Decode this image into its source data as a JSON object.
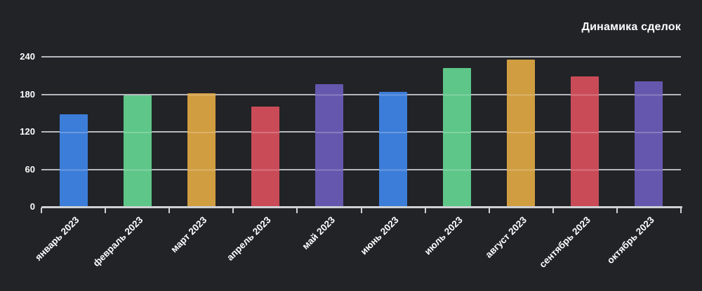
{
  "header": {
    "title": "Динамика сделок"
  },
  "chart_data": {
    "type": "bar",
    "title": "Динамика сделок",
    "categories": [
      "январь 2023",
      "февраль 2023",
      "март 2023",
      "апрель 2023",
      "май 2023",
      "июнь 2023",
      "июль 2023",
      "август 2023",
      "сентябрь 2023",
      "октябрь 2023"
    ],
    "values": [
      148,
      178,
      182,
      160,
      196,
      184,
      222,
      235,
      209,
      201
    ],
    "bar_colors": [
      "#3c7dd9",
      "#5dc688",
      "#d09d40",
      "#ca4b58",
      "#6557ad",
      "#3c7dd9",
      "#5dc688",
      "#d09d40",
      "#ca4b58",
      "#6557ad"
    ],
    "palette": [
      "#3c7dd9",
      "#5dc688",
      "#d09d40",
      "#ca4b58",
      "#6557ad"
    ],
    "xlabel": "",
    "ylabel": "",
    "y_ticks": [
      0,
      60,
      120,
      180,
      240
    ],
    "ylim": [
      0,
      240
    ],
    "grid": true,
    "legend": "none",
    "colors": {
      "background": "#222327",
      "text": "#ffffff",
      "gridline": "#b4b8be",
      "axis": "#ced1d5"
    }
  }
}
